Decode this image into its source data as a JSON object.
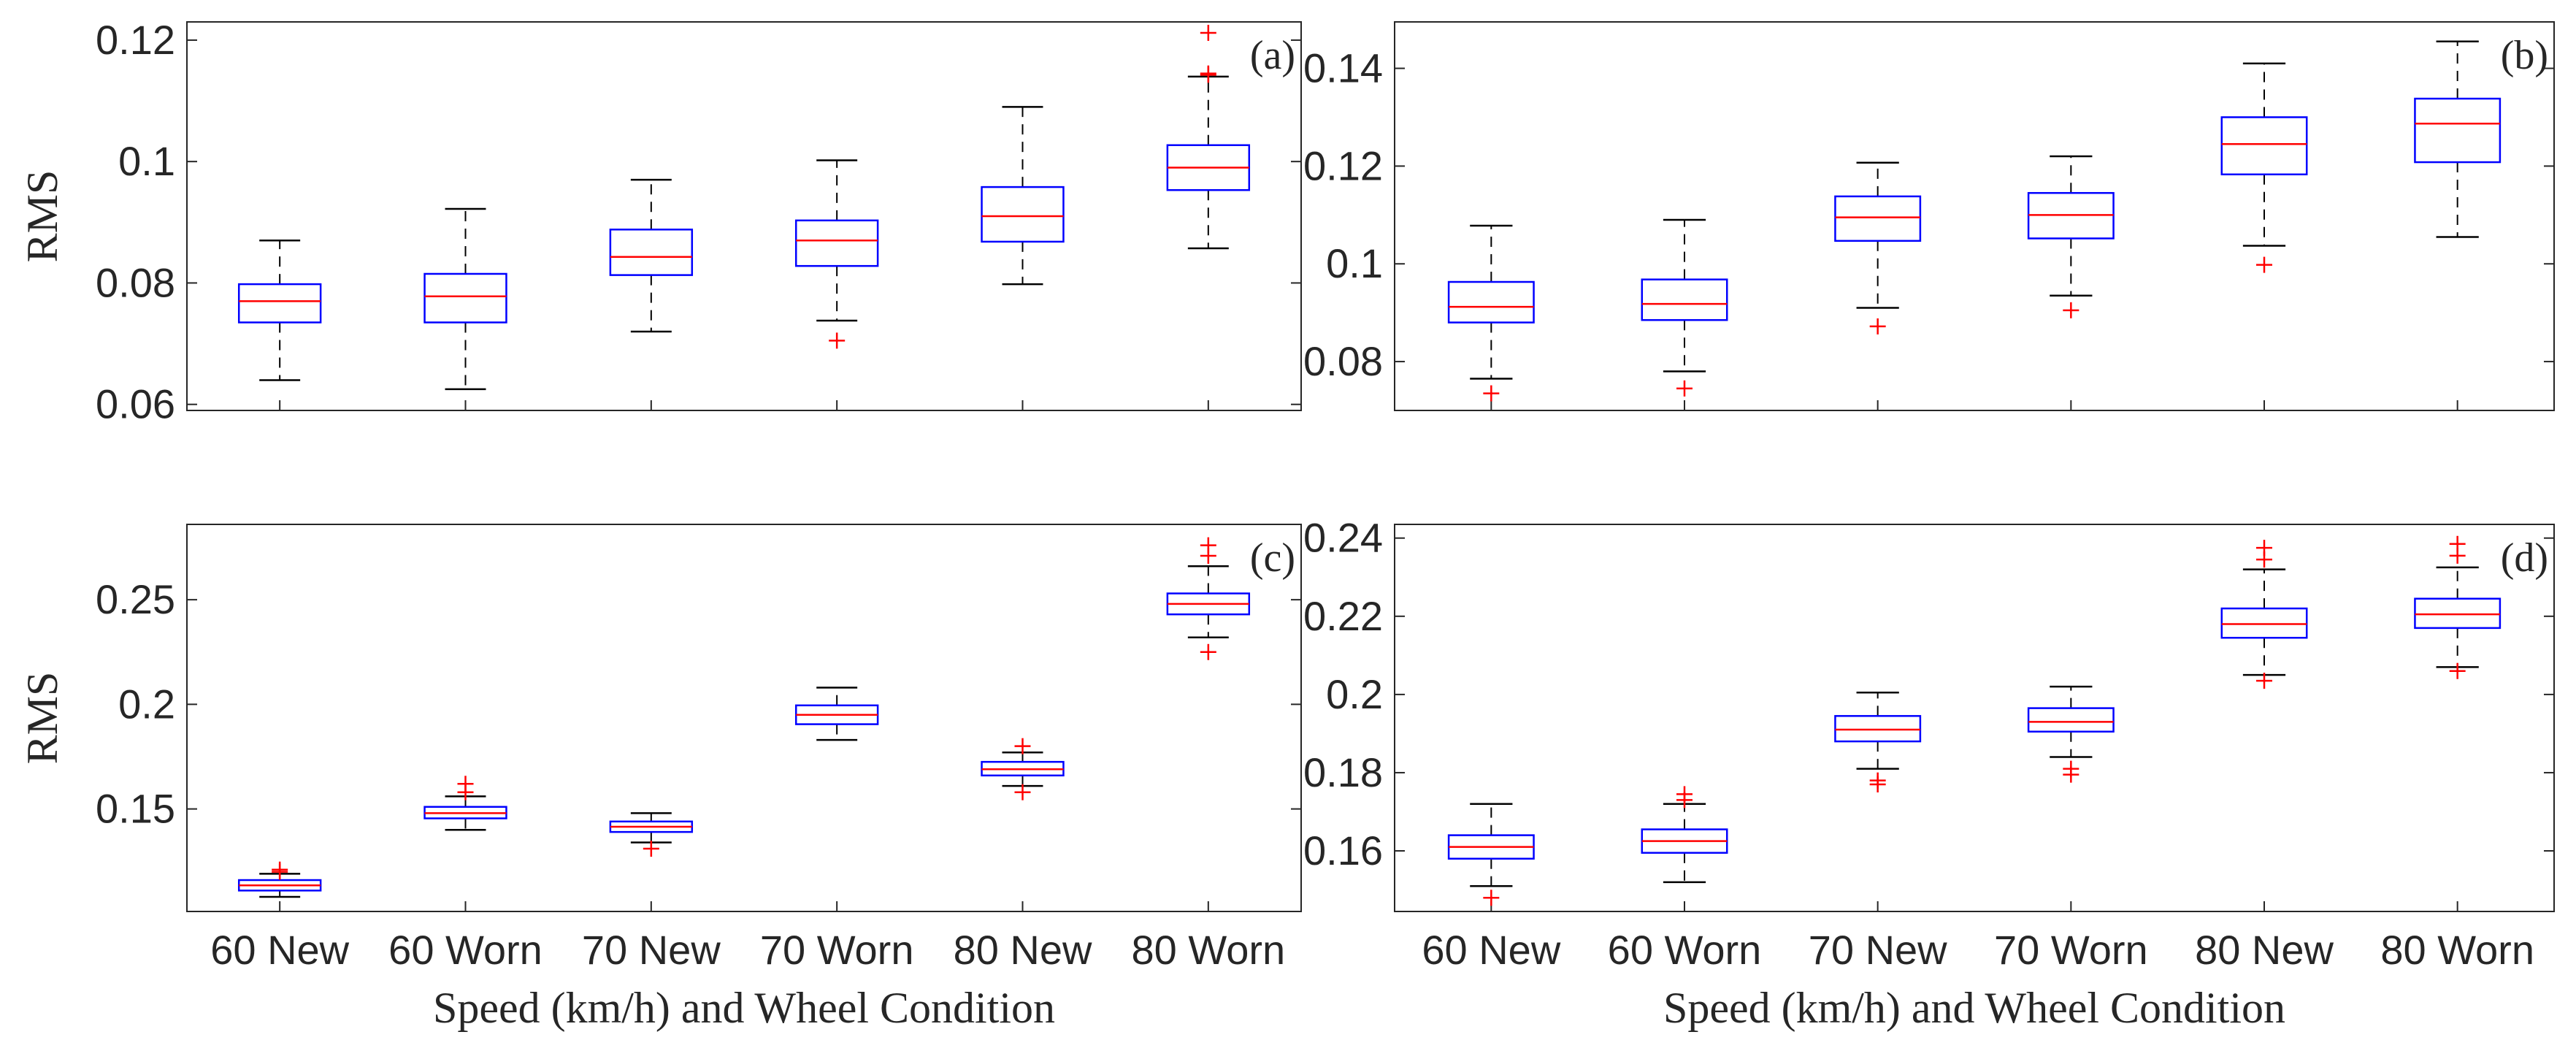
{
  "chart_data": [
    {
      "type": "box",
      "panel_label": "(a)",
      "ylabel": "RMS",
      "xlabel": "",
      "ylim": [
        0.059,
        0.123
      ],
      "yticks": [
        "0.06",
        "0.08",
        "0.1",
        "0.12"
      ],
      "categories": [
        "60 New",
        "60 Worn",
        "70 New",
        "70 Worn",
        "80 New",
        "80 Worn"
      ],
      "boxes": [
        {
          "min": 0.064,
          "q1": 0.0735,
          "median": 0.077,
          "q3": 0.0798,
          "max": 0.087,
          "outliers": []
        },
        {
          "min": 0.0625,
          "q1": 0.0735,
          "median": 0.0778,
          "q3": 0.0815,
          "max": 0.0922,
          "outliers": []
        },
        {
          "min": 0.072,
          "q1": 0.0813,
          "median": 0.0843,
          "q3": 0.0888,
          "max": 0.097,
          "outliers": []
        },
        {
          "min": 0.0738,
          "q1": 0.0828,
          "median": 0.087,
          "q3": 0.0903,
          "max": 0.1002,
          "outliers": [
            0.0705
          ]
        },
        {
          "min": 0.0798,
          "q1": 0.0868,
          "median": 0.091,
          "q3": 0.0958,
          "max": 0.109,
          "outliers": []
        },
        {
          "min": 0.0857,
          "q1": 0.0953,
          "median": 0.099,
          "q3": 0.1027,
          "max": 0.114,
          "outliers": [
            0.1143,
            0.1145,
            0.1212
          ]
        }
      ]
    },
    {
      "type": "box",
      "panel_label": "(b)",
      "ylabel": "",
      "xlabel": "",
      "ylim": [
        0.07,
        0.1495
      ],
      "yticks": [
        "0.08",
        "0.1",
        "0.12",
        "0.14"
      ],
      "categories": [
        "60 New",
        "60 Worn",
        "70 New",
        "70 Worn",
        "80 New",
        "80 Worn"
      ],
      "boxes": [
        {
          "min": 0.0765,
          "q1": 0.088,
          "median": 0.0912,
          "q3": 0.0963,
          "max": 0.1078,
          "outliers": [
            0.0735
          ]
        },
        {
          "min": 0.078,
          "q1": 0.0885,
          "median": 0.0918,
          "q3": 0.0968,
          "max": 0.109,
          "outliers": [
            0.0745
          ]
        },
        {
          "min": 0.091,
          "q1": 0.1047,
          "median": 0.1095,
          "q3": 0.1138,
          "max": 0.1207,
          "outliers": [
            0.0872
          ]
        },
        {
          "min": 0.0935,
          "q1": 0.1052,
          "median": 0.11,
          "q3": 0.1145,
          "max": 0.122,
          "outliers": [
            0.0905
          ]
        },
        {
          "min": 0.1037,
          "q1": 0.1183,
          "median": 0.1245,
          "q3": 0.13,
          "max": 0.141,
          "outliers": [
            0.0998
          ]
        },
        {
          "min": 0.1055,
          "q1": 0.1208,
          "median": 0.1287,
          "q3": 0.1338,
          "max": 0.1455,
          "outliers": []
        }
      ]
    },
    {
      "type": "box",
      "panel_label": "(c)",
      "ylabel": "RMS",
      "xlabel": "Speed (km/h) and Wheel Condition",
      "ylim": [
        0.101,
        0.286
      ],
      "yticks": [
        "0.15",
        "0.2",
        "0.25"
      ],
      "categories": [
        "60 New",
        "60 Worn",
        "70 New",
        "70 Worn",
        "80 New",
        "80 Worn"
      ],
      "boxes": [
        {
          "min": 0.108,
          "q1": 0.111,
          "median": 0.1135,
          "q3": 0.116,
          "max": 0.119,
          "outliers": [
            0.12,
            0.121
          ]
        },
        {
          "min": 0.14,
          "q1": 0.1455,
          "median": 0.148,
          "q3": 0.151,
          "max": 0.156,
          "outliers": [
            0.158,
            0.162
          ]
        },
        {
          "min": 0.134,
          "q1": 0.139,
          "median": 0.1415,
          "q3": 0.144,
          "max": 0.148,
          "outliers": [
            0.131
          ]
        },
        {
          "min": 0.183,
          "q1": 0.1905,
          "median": 0.195,
          "q3": 0.1995,
          "max": 0.208,
          "outliers": []
        },
        {
          "min": 0.161,
          "q1": 0.166,
          "median": 0.169,
          "q3": 0.1725,
          "max": 0.177,
          "outliers": [
            0.158,
            0.18
          ]
        },
        {
          "min": 0.232,
          "q1": 0.243,
          "median": 0.248,
          "q3": 0.253,
          "max": 0.266,
          "outliers": [
            0.225,
            0.271,
            0.276
          ]
        }
      ]
    },
    {
      "type": "box",
      "panel_label": "(d)",
      "ylabel": "",
      "xlabel": "Speed (km/h) and Wheel Condition",
      "ylim": [
        0.1445,
        0.2435
      ],
      "yticks": [
        "0.16",
        "0.18",
        "0.2",
        "0.22",
        "0.24"
      ],
      "categories": [
        "60 New",
        "60 Worn",
        "70 New",
        "70 Worn",
        "80 New",
        "80 Worn"
      ],
      "boxes": [
        {
          "min": 0.151,
          "q1": 0.158,
          "median": 0.161,
          "q3": 0.164,
          "max": 0.172,
          "outliers": [
            0.148
          ]
        },
        {
          "min": 0.152,
          "q1": 0.1595,
          "median": 0.1625,
          "q3": 0.1655,
          "max": 0.172,
          "outliers": [
            0.173,
            0.1745
          ]
        },
        {
          "min": 0.181,
          "q1": 0.188,
          "median": 0.191,
          "q3": 0.1945,
          "max": 0.2005,
          "outliers": [
            0.177,
            0.178
          ]
        },
        {
          "min": 0.184,
          "q1": 0.1905,
          "median": 0.193,
          "q3": 0.1965,
          "max": 0.202,
          "outliers": [
            0.1795,
            0.181
          ]
        },
        {
          "min": 0.205,
          "q1": 0.2145,
          "median": 0.218,
          "q3": 0.222,
          "max": 0.232,
          "outliers": [
            0.2035,
            0.2345,
            0.2375
          ]
        },
        {
          "min": 0.207,
          "q1": 0.217,
          "median": 0.2205,
          "q3": 0.2245,
          "max": 0.2325,
          "outliers": [
            0.206,
            0.2355,
            0.2385
          ]
        }
      ]
    }
  ]
}
